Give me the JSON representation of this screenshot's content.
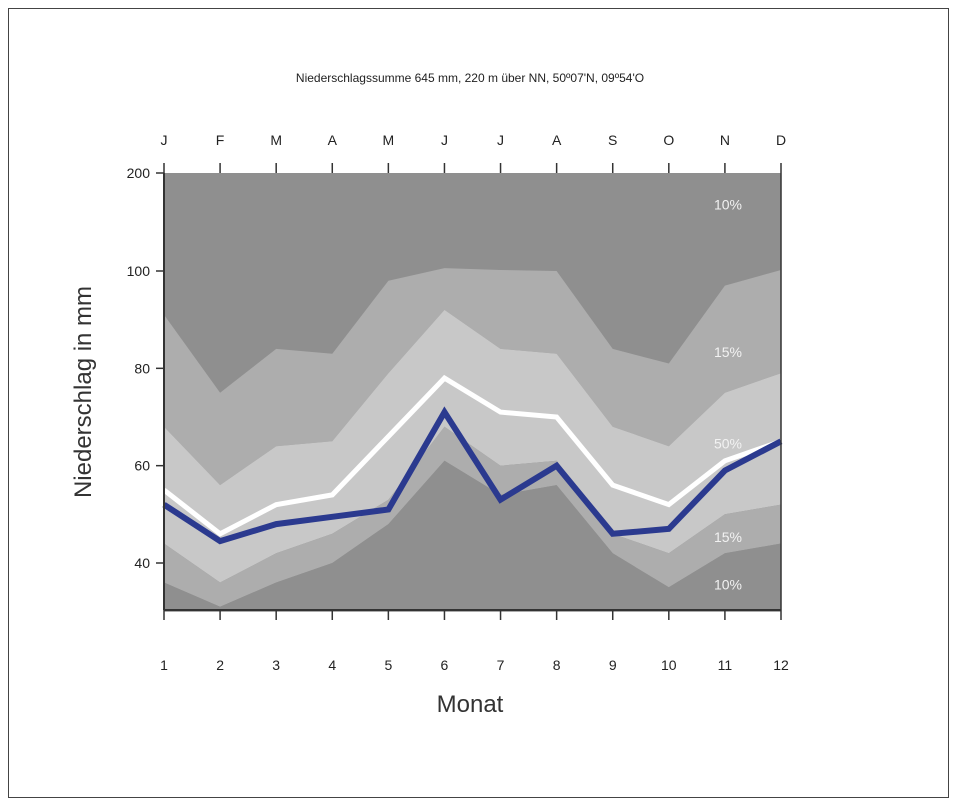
{
  "chart_data": {
    "type": "area",
    "title": "Niederschlagssumme 645 mm, 220 m über NN, 50º07'N, 09º54'O",
    "xlabel": "Monat",
    "ylabel": "Niederschlag in mm",
    "x": [
      1,
      2,
      3,
      4,
      5,
      6,
      7,
      8,
      9,
      10,
      11,
      12
    ],
    "x_tick_labels": [
      "1",
      "2",
      "3",
      "4",
      "5",
      "6",
      "7",
      "8",
      "9",
      "10",
      "11",
      "12"
    ],
    "month_letters": [
      "J",
      "F",
      "M",
      "A",
      "M",
      "J",
      "J",
      "A",
      "S",
      "O",
      "N",
      "D"
    ],
    "y_tick_labels": [
      "200",
      "100",
      "80",
      "60",
      "40"
    ],
    "y_ticks_data": [
      200,
      100,
      80,
      60,
      40
    ],
    "ylim_display": [
      30,
      200
    ],
    "y_scale_note": "linear from 30 to 100, compressed segment 100–200 at top",
    "band_labels": [
      "10%",
      "15%",
      "50%",
      "15%",
      "10%"
    ],
    "percentile_curves": [
      {
        "key": "p90",
        "values": [
          91,
          75,
          84,
          83,
          98,
          103,
          101,
          100,
          84,
          81,
          97,
          101
        ]
      },
      {
        "key": "p75",
        "values": [
          68,
          56,
          64,
          65,
          79,
          92,
          84,
          83,
          68,
          64,
          75,
          79
        ]
      },
      {
        "key": "median",
        "values": [
          55,
          46,
          52,
          54,
          66,
          78,
          71,
          70,
          56,
          52,
          61,
          65
        ]
      },
      {
        "key": "p25",
        "values": [
          44,
          36,
          42,
          46,
          53,
          68,
          60,
          61,
          46,
          42,
          50,
          52
        ]
      },
      {
        "key": "p10",
        "values": [
          36,
          31,
          36,
          40,
          48,
          61,
          54,
          56,
          42,
          35,
          42,
          44
        ]
      }
    ],
    "series": [
      {
        "values": [
          52,
          44.5,
          48,
          49.5,
          51,
          71,
          53,
          60,
          46,
          47,
          59,
          65
        ]
      }
    ],
    "colors": {
      "outer_band": "#8f8f8f",
      "mid_band": "#adadad",
      "inner_band": "#c8c8c8",
      "median_line": "#ffffff",
      "series_line": "#2b3a8f"
    }
  }
}
